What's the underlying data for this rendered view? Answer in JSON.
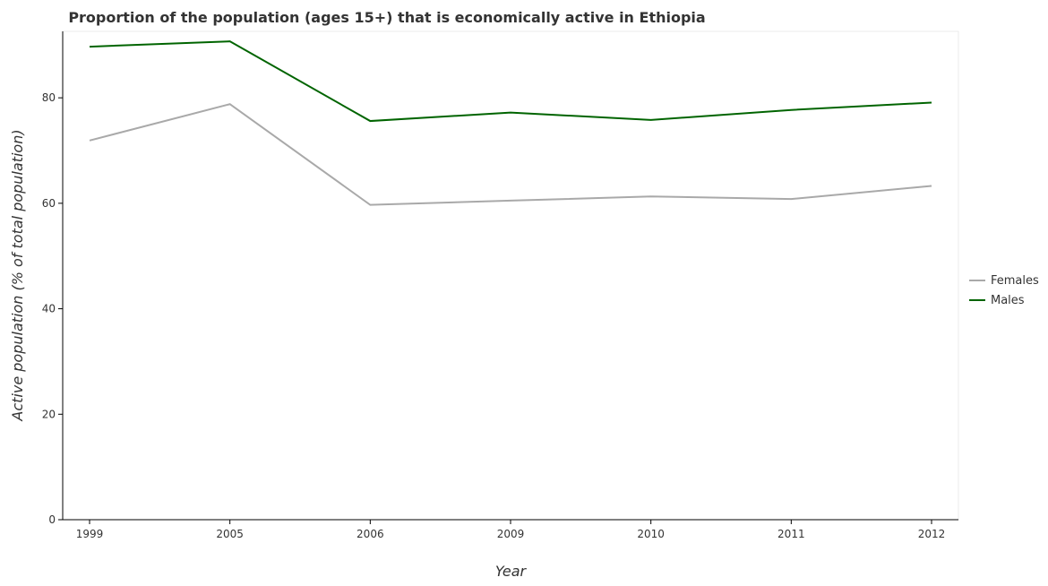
{
  "chart_data": {
    "type": "line",
    "title": "Proportion of the population (ages 15+) that is economically active in Ethiopia",
    "xlabel": "Year",
    "ylabel": "Active population (% of total population)",
    "categories": [
      "1999",
      "2005",
      "2006",
      "2009",
      "2010",
      "2011",
      "2012"
    ],
    "series": [
      {
        "name": "Females",
        "color": "#a9a9a9",
        "values": [
          71.9,
          78.8,
          59.7,
          60.5,
          61.3,
          60.8,
          63.3
        ]
      },
      {
        "name": "Males",
        "color": "#006400",
        "values": [
          89.7,
          90.7,
          75.6,
          77.2,
          75.8,
          77.7,
          79.1
        ]
      }
    ],
    "yticks": [
      0,
      20,
      40,
      60,
      80
    ],
    "ylim": [
      0,
      92.6
    ],
    "grid": false,
    "legend_position": "right"
  }
}
